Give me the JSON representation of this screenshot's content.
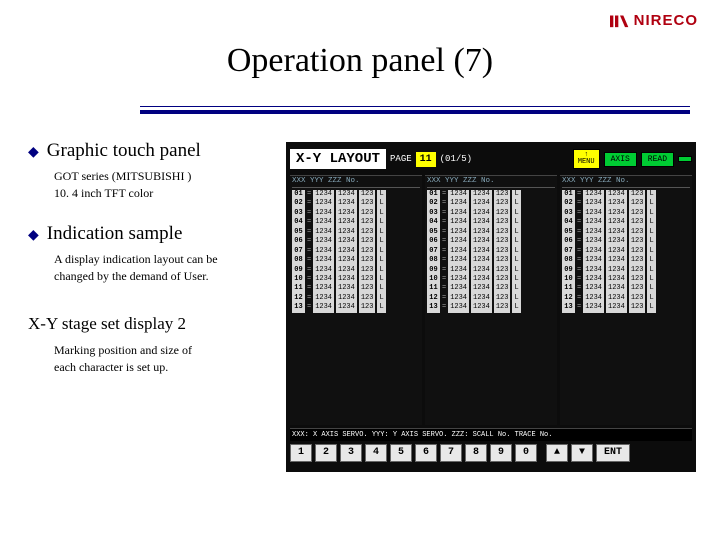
{
  "brand": {
    "name": "NIRECO",
    "logo_color": "#b00010"
  },
  "title": "Operation panel (7)",
  "accent_color": "#000080",
  "left": {
    "s1": {
      "heading": "Graphic touch panel",
      "line1": "GOT series (MITSUBISHI )",
      "line2": "10. 4 inch TFT color"
    },
    "s2": {
      "heading": "Indication sample",
      "line1": "A display indication layout can be",
      "line2": "changed by the demand of User."
    },
    "s3": {
      "heading": "X-Y stage set display 2",
      "line1": "Marking position and size of",
      "line2": "each character is set up."
    }
  },
  "hmi": {
    "title": "X-Y LAYOUT",
    "page_label": "PAGE",
    "page_num": "11",
    "page_total": "(01/5)",
    "menu_btn": "↑\nMENU",
    "btn_axis": "AXIS",
    "btn_read": "READ",
    "btn_blank": " ",
    "col_head": "XXX YYY ZZZ No.",
    "rows_left": [
      "01",
      "02",
      "03",
      "04",
      "05",
      "06",
      "07",
      "08",
      "09",
      "10",
      "11",
      "12",
      "13"
    ],
    "rows_mid": [
      "01",
      "02",
      "03",
      "04",
      "05",
      "06",
      "07",
      "08",
      "09",
      "10",
      "11",
      "12",
      "13"
    ],
    "rows_right": [
      "01",
      "02",
      "03",
      "04",
      "05",
      "06",
      "07",
      "08",
      "09",
      "10",
      "11",
      "12",
      "13"
    ],
    "cell_a": "1234",
    "cell_b": "1234",
    "cell_c": "123",
    "cell_d": "L",
    "footer": "XXX: X AXIS SERVO.   YYY: Y AXIS SERVO.   ZZZ: SCALL No.   TRACE No.",
    "keys": [
      "1",
      "2",
      "3",
      "4",
      "5",
      "6",
      "7",
      "8",
      "9",
      "0",
      "▲",
      "▼",
      "ENT"
    ]
  }
}
